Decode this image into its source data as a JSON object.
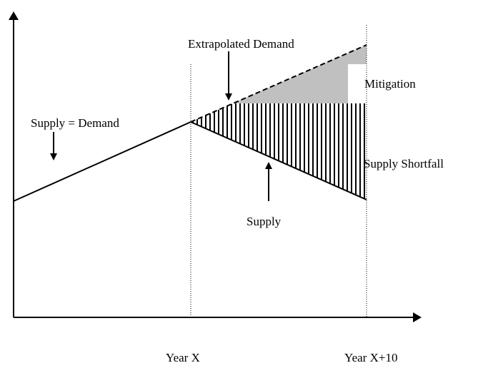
{
  "labels": {
    "extrapolated_demand": "Extrapolated Demand",
    "mitigation": "Mitigation",
    "supply_equals_demand": "Supply = Demand",
    "supply_shortfall": "Supply Shortfall",
    "supply": "Supply"
  },
  "x_axis": {
    "labels": [
      "Year X",
      "Year X+10"
    ]
  }
}
